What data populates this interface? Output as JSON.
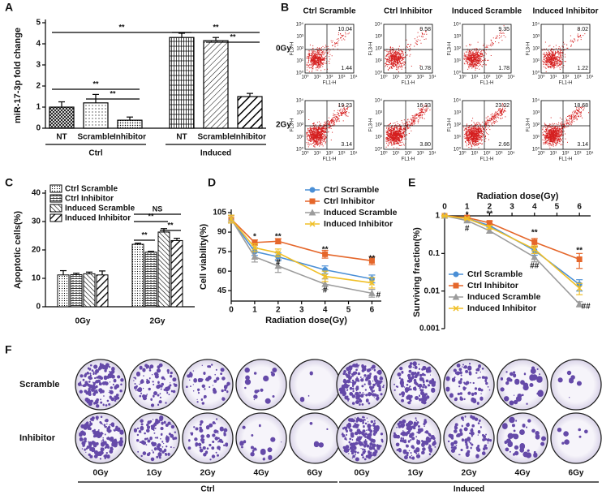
{
  "panel_labels": [
    "A",
    "B",
    "C",
    "D",
    "E",
    "F"
  ],
  "chart_data": [
    {
      "type": "bar",
      "y_label": "miR-17-3p fold change",
      "categories": [
        "NT",
        "Scramble",
        "Inhibitor",
        "NT",
        "Scramble",
        "Inhibitor"
      ],
      "group_labels": [
        "Ctrl",
        "Induced"
      ],
      "values": [
        1.0,
        1.2,
        0.38,
        4.3,
        4.15,
        1.5
      ],
      "errors": [
        0.25,
        0.4,
        0.15,
        0.2,
        0.15,
        0.15
      ],
      "ylim": [
        0,
        5
      ],
      "yticks": [
        0,
        1,
        2,
        3,
        4,
        5
      ],
      "annotations": [
        "**",
        "**",
        "**",
        "**",
        "**"
      ]
    },
    {
      "type": "grouped-bar",
      "y_label": "Apoptotic cells(%)",
      "categories": [
        "0Gy",
        "2Gy"
      ],
      "series": [
        {
          "name": "Ctrl Scramble",
          "values": [
            11.2,
            22.0
          ],
          "errors": [
            1.5,
            0.4
          ]
        },
        {
          "name": "Ctrl Inhibitor",
          "values": [
            11.3,
            19.2
          ],
          "errors": [
            0.5,
            0.3
          ]
        },
        {
          "name": "Induced Scramble",
          "values": [
            11.6,
            26.3
          ],
          "errors": [
            0.6,
            1.2
          ]
        },
        {
          "name": "Induced Inhibitor",
          "values": [
            11.2,
            23.3
          ],
          "errors": [
            1.4,
            0.8
          ]
        }
      ],
      "ylim": [
        0,
        40
      ],
      "yticks": [
        0,
        10,
        20,
        30,
        40
      ],
      "annotations": [
        "NS",
        "**",
        "**",
        "**"
      ]
    },
    {
      "type": "line",
      "x_label": "Radiation dose(Gy)",
      "y_label": "Cell viability(%)",
      "x": [
        0,
        1,
        2,
        4,
        6
      ],
      "series": [
        {
          "name": "Ctrl Scramble",
          "color": "#4a8fd6",
          "marker": "circle",
          "values": [
            100,
            75,
            71,
            61,
            54
          ],
          "errors": [
            3,
            3,
            3,
            3,
            3
          ]
        },
        {
          "name": "Ctrl Inhibitor",
          "color": "#e5672b",
          "marker": "square",
          "values": [
            100,
            82,
            83,
            73,
            68
          ],
          "errors": [
            3,
            2,
            2,
            3,
            3
          ]
        },
        {
          "name": "Induced Scramble",
          "color": "#9c9c9c",
          "marker": "triangle",
          "values": [
            100,
            71,
            64,
            50,
            43
          ],
          "errors": [
            3,
            4,
            5,
            4,
            3
          ]
        },
        {
          "name": "Induced Inhibitor",
          "color": "#f0bf26",
          "marker": "x",
          "values": [
            100,
            78,
            74,
            56,
            51
          ],
          "errors": [
            3,
            3,
            3,
            4,
            4
          ]
        }
      ],
      "xlim": [
        0,
        6.4
      ],
      "xticks": [
        0,
        1,
        2,
        3,
        4,
        5,
        6
      ],
      "ylim": [
        37,
        105
      ],
      "yticks": [
        45,
        60,
        75,
        90,
        105
      ],
      "annotations": [
        "*",
        "**",
        "**",
        "**",
        "#",
        "#",
        "#"
      ]
    },
    {
      "type": "line",
      "x_label": "Radiation dose(Gy)",
      "y_label": "Surviving fraction(%)",
      "log_y": true,
      "x": [
        0,
        1,
        2,
        4,
        6
      ],
      "series": [
        {
          "name": "Ctrl Scramble",
          "color": "#4a8fd6",
          "marker": "circle",
          "values": [
            1,
            0.85,
            0.55,
            0.12,
            0.015
          ],
          "errors": [
            0.02,
            0.05,
            0.05,
            0.03,
            0.005
          ]
        },
        {
          "name": "Ctrl Inhibitor",
          "color": "#e5672b",
          "marker": "square",
          "values": [
            1,
            0.9,
            0.65,
            0.2,
            0.07
          ],
          "errors": [
            0.02,
            0.05,
            0.08,
            0.05,
            0.03
          ]
        },
        {
          "name": "Induced Scramble",
          "color": "#9c9c9c",
          "marker": "triangle",
          "values": [
            1,
            0.75,
            0.4,
            0.08,
            0.0045
          ],
          "errors": [
            0.02,
            0.05,
            0.05,
            0.02,
            0.0007
          ]
        },
        {
          "name": "Induced Inhibitor",
          "color": "#f0bf26",
          "marker": "x",
          "values": [
            1,
            0.85,
            0.5,
            0.13,
            0.012
          ],
          "errors": [
            0.02,
            0.05,
            0.05,
            0.03,
            0.004
          ]
        }
      ],
      "xlim": [
        0,
        6.5
      ],
      "xticks": [
        0,
        1,
        2,
        3,
        4,
        5,
        6
      ],
      "ylim": [
        0.001,
        1
      ],
      "yticks": [
        1,
        0.1,
        0.01,
        0.001
      ],
      "annotations": [
        "*",
        "**",
        "**",
        "**",
        "#",
        "##",
        "##"
      ]
    }
  ],
  "flow_cytometry": {
    "columns": [
      "Ctrl Scramble",
      "Ctrl Inhibitor",
      "Induced Scramble",
      "Induced Inhibitor"
    ],
    "rows": [
      "0Gy",
      "2Gy"
    ],
    "x_label": "FL1-H",
    "y_label": "FL3-H",
    "axis_ticks": [
      "10⁰",
      "10¹",
      "10²",
      "10³",
      "10⁴"
    ],
    "upper_right": [
      [
        "10.04",
        "9.58",
        "9.35",
        "8.02"
      ],
      [
        "19.23",
        "16.33",
        "23.02",
        "18.68"
      ]
    ],
    "lower_right": [
      [
        "1.44",
        "0.78",
        "1.78",
        "1.22"
      ],
      [
        "3.14",
        "3.80",
        "2.66",
        "3.14"
      ]
    ]
  },
  "colony_assay": {
    "rows": [
      "Scramble",
      "Inhibitor"
    ],
    "doses": [
      "0Gy",
      "1Gy",
      "2Gy",
      "4Gy",
      "6Gy"
    ],
    "groups": [
      "Ctrl",
      "Induced"
    ]
  }
}
